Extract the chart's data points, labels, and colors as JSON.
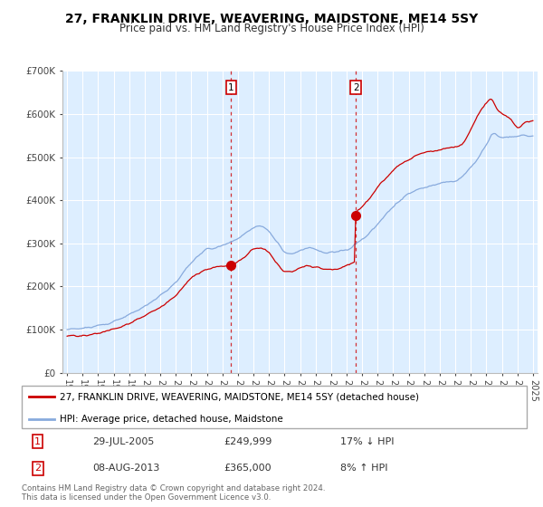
{
  "title": "27, FRANKLIN DRIVE, WEAVERING, MAIDSTONE, ME14 5SY",
  "subtitle": "Price paid vs. HM Land Registry's House Price Index (HPI)",
  "title_fontsize": 10,
  "subtitle_fontsize": 8.5,
  "background_color": "#ffffff",
  "plot_bg_color": "#ddeeff",
  "grid_color": "#ffffff",
  "ylim": [
    0,
    700000
  ],
  "yticks": [
    0,
    100000,
    200000,
    300000,
    400000,
    500000,
    600000,
    700000
  ],
  "ytick_labels": [
    "£0",
    "£100K",
    "£200K",
    "£300K",
    "£400K",
    "£500K",
    "£600K",
    "£700K"
  ],
  "red_color": "#cc0000",
  "blue_color": "#88aadd",
  "legend_label_red": "27, FRANKLIN DRIVE, WEAVERING, MAIDSTONE, ME14 5SY (detached house)",
  "legend_label_blue": "HPI: Average price, detached house, Maidstone",
  "annotation1_date": "29-JUL-2005",
  "annotation1_price": "£249,999",
  "annotation1_hpi": "17% ↓ HPI",
  "annotation2_date": "08-AUG-2013",
  "annotation2_price": "£365,000",
  "annotation2_hpi": "8% ↑ HPI",
  "footer": "Contains HM Land Registry data © Crown copyright and database right 2024.\nThis data is licensed under the Open Government Licence v3.0.",
  "sale1_year": 2005.57,
  "sale1_price": 249999,
  "sale2_year": 2013.6,
  "sale2_price": 365000
}
